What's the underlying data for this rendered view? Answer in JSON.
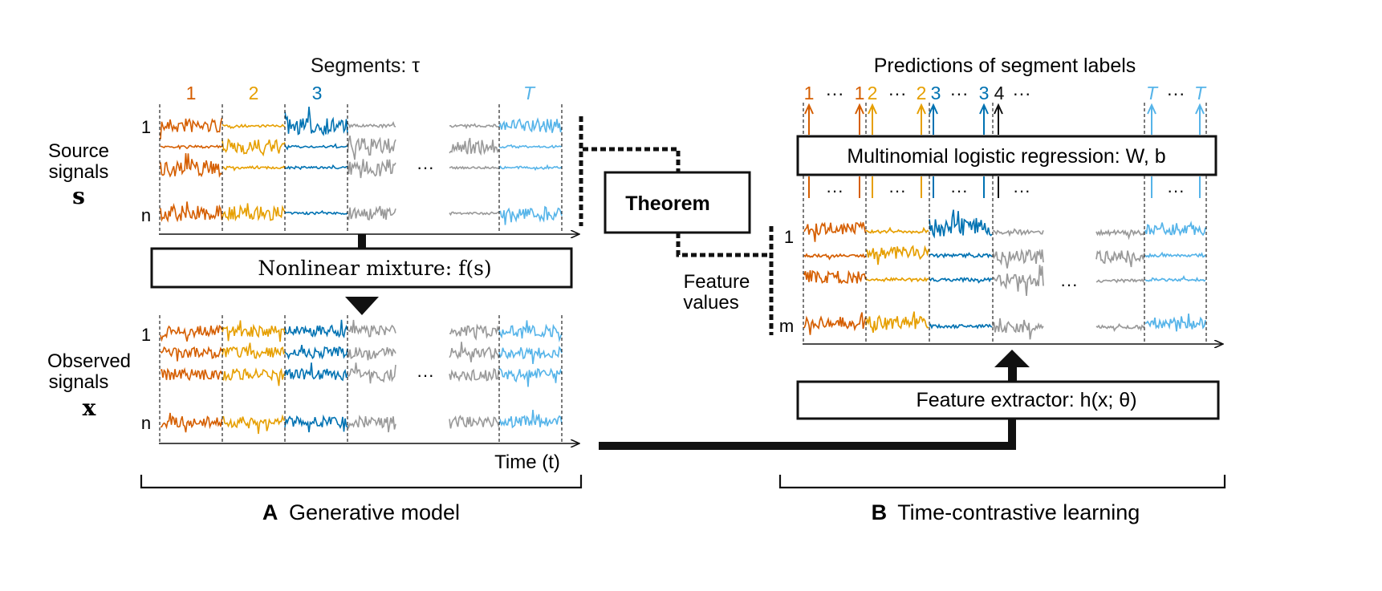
{
  "colors": {
    "seg1": "#d55e00",
    "seg2": "#e69f00",
    "seg3": "#0072b2",
    "segT": "#56b4e9",
    "gray": "#999999",
    "black": "#111111"
  },
  "panel_a": {
    "segments_title": "Segments: τ",
    "segment_labels": [
      "1",
      "2",
      "3",
      "T"
    ],
    "source_label_line1": "Source",
    "source_label_line2": "signals",
    "source_symbol": "s",
    "observed_label_line1": "Observed",
    "observed_label_line2": "signals",
    "observed_symbol": "x",
    "row_first": "1",
    "row_last": "n",
    "ellipsis": "···",
    "mixture_box": "Nonlinear mixture: f(s)",
    "time_label": "Time (t)",
    "caption_letter": "A",
    "caption_text": "Generative model"
  },
  "theorem": {
    "label": "Theorem"
  },
  "panel_b": {
    "predictions_title": "Predictions of segment labels",
    "label_row": [
      "1",
      "···",
      "1",
      "2",
      "···",
      "2",
      "3",
      "···",
      "3",
      "4",
      "···",
      "T",
      "···",
      "T"
    ],
    "regression_box": "Multinomial logistic regression: W, b",
    "feature_values_line1": "Feature",
    "feature_values_line2": "values",
    "row_first": "1",
    "row_last": "m",
    "ellipsis": "···",
    "extractor_box": "Feature extractor: h(x; θ)",
    "caption_letter": "B",
    "caption_text": "Time-contrastive learning"
  }
}
